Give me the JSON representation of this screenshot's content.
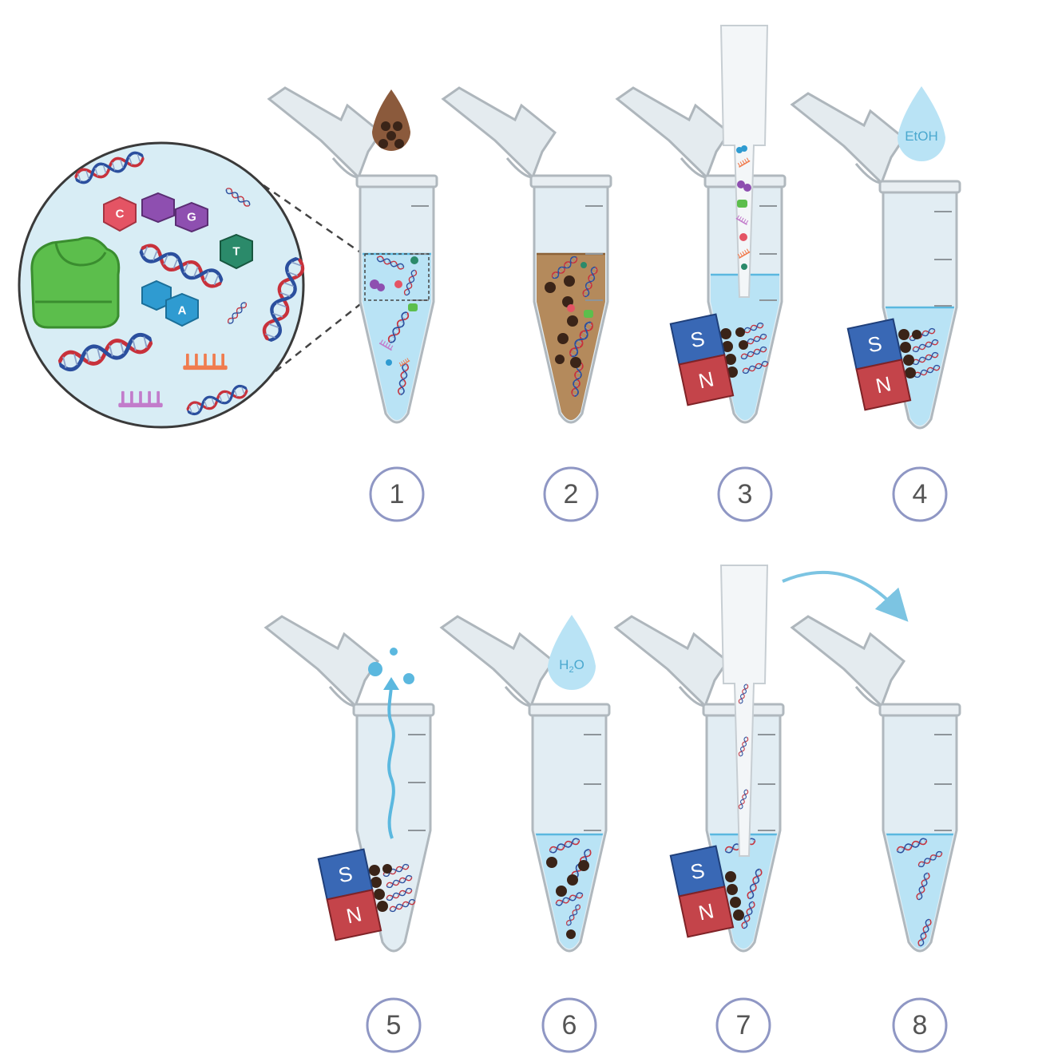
{
  "steps": [
    "1",
    "2",
    "3",
    "4",
    "5",
    "6",
    "7",
    "8"
  ],
  "magnet": {
    "south_label": "S",
    "north_label": "N"
  },
  "reagents": {
    "ethanol_label": "EtOH",
    "water_label_main": "H",
    "water_label_sub": "2",
    "water_label_end": "O"
  },
  "bases": {
    "c": "C",
    "g": "G",
    "t": "T",
    "a": "A"
  },
  "colors": {
    "circle_stroke": "#8f97c4",
    "liquid": "#b9e3f5",
    "beads_liquid": "#b48a5c",
    "dna_red": "#c8313b",
    "dna_blue": "#2b4f9e"
  }
}
